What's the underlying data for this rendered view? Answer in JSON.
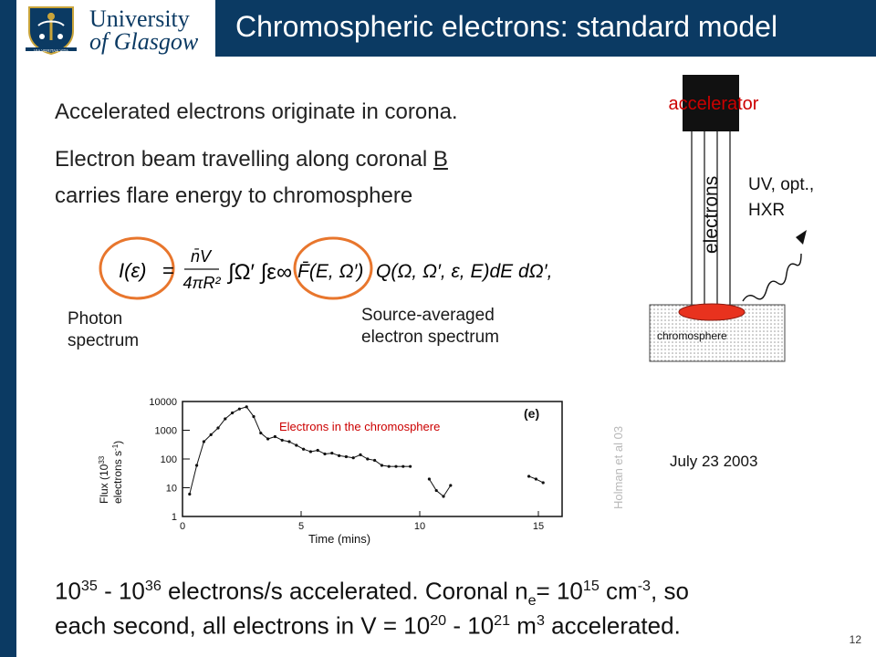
{
  "header": {
    "title": "Chromospheric electrons: standard model",
    "university_line1": "University",
    "university_line2": "of Glasgow",
    "motto": "VIA VERITAS VITA"
  },
  "bullets": {
    "line1": "Accelerated electrons originate in corona.",
    "line2_pre": "Electron beam travelling along coronal ",
    "line2_b": "B",
    "line3": "carries flare energy to chromosphere"
  },
  "equation": {
    "lhs": "I(ε)",
    "eq": "=",
    "prefactor_num": "n̄V",
    "prefactor_den": "4πR²",
    "integral": "∫Ω′ ∫ε∞",
    "f_term": "F̄(E, Ω′)",
    "rest": "Q(Ω, Ω′, ε, E)dE dΩ′,"
  },
  "labels": {
    "photon_1": "Photon",
    "photon_2": "spectrum",
    "source_1": "Source-averaged",
    "source_2": "electron spectrum"
  },
  "schematic": {
    "accelerator": "accelerator",
    "electrons": "electrons",
    "emission_1": "UV, opt.,",
    "emission_2": "HXR",
    "chromosphere": "chromosphere"
  },
  "plot": {
    "annotation": "Electrons in the chromosphere",
    "panel": "(e)",
    "ylabel_1": "Flux (10",
    "ylabel_exp": "33",
    "ylabel_2": "electrons s",
    "ylabel_exp2": "-1",
    "ylabel_3": ")",
    "xlabel": "Time (mins)",
    "credit": "Holman et al 03",
    "date": "July 23 2003"
  },
  "chart_data": {
    "type": "scatter",
    "xlabel": "Time (mins)",
    "ylabel": "Flux (10^33 electrons s^-1)",
    "xlim": [
      0,
      16
    ],
    "ylim": [
      1,
      10000
    ],
    "yscale": "log",
    "x_ticks": [
      "0",
      "5",
      "10",
      "15"
    ],
    "y_ticks": [
      "1",
      "10",
      "100",
      "1000",
      "10000"
    ],
    "annotation": "Electrons in the chromosphere",
    "series": [
      {
        "x": [
          0.3,
          0.6,
          0.9,
          1.2,
          1.5,
          1.8,
          2.1,
          2.4,
          2.7,
          3.0,
          3.3,
          3.6,
          3.9,
          4.2,
          4.5,
          4.8,
          5.1,
          5.4,
          5.7,
          6.0,
          6.3,
          6.6,
          6.9,
          7.2,
          7.5,
          7.8,
          8.1,
          8.4,
          8.7,
          9.0,
          9.3,
          9.6,
          10.4,
          10.7,
          11.0,
          11.3,
          14.6,
          14.9,
          15.2
        ],
        "y": [
          6,
          60,
          400,
          700,
          1200,
          2500,
          4000,
          5500,
          6500,
          3000,
          800,
          500,
          600,
          450,
          400,
          300,
          220,
          180,
          200,
          150,
          160,
          130,
          120,
          110,
          140,
          100,
          90,
          60,
          55,
          55,
          55,
          55,
          20,
          8,
          5,
          12,
          25,
          20,
          15
        ]
      }
    ]
  },
  "bottom": {
    "l1_a": "10",
    "l1_a_exp": "35",
    "l1_b": " - 10",
    "l1_b_exp": "36",
    "l1_c": " electrons/s accelerated.  Coronal n",
    "l1_sub": "e",
    "l1_d": "= 10",
    "l1_d_exp": "15",
    "l1_e": " cm",
    "l1_e_exp": "-3",
    "l1_f": ", so",
    "l2_a": "each second, all electrons in V = 10",
    "l2_a_exp": "20",
    "l2_b": " - 10",
    "l2_b_exp": "21",
    "l2_c": " m",
    "l2_c_exp": "3",
    "l2_d": " accelerated."
  },
  "page_number": "12",
  "colors": {
    "brand_navy": "#0b3a63",
    "annotation_red": "#cc0000",
    "highlight_orange": "#e8762d",
    "footpoint_red": "#e8321e"
  }
}
